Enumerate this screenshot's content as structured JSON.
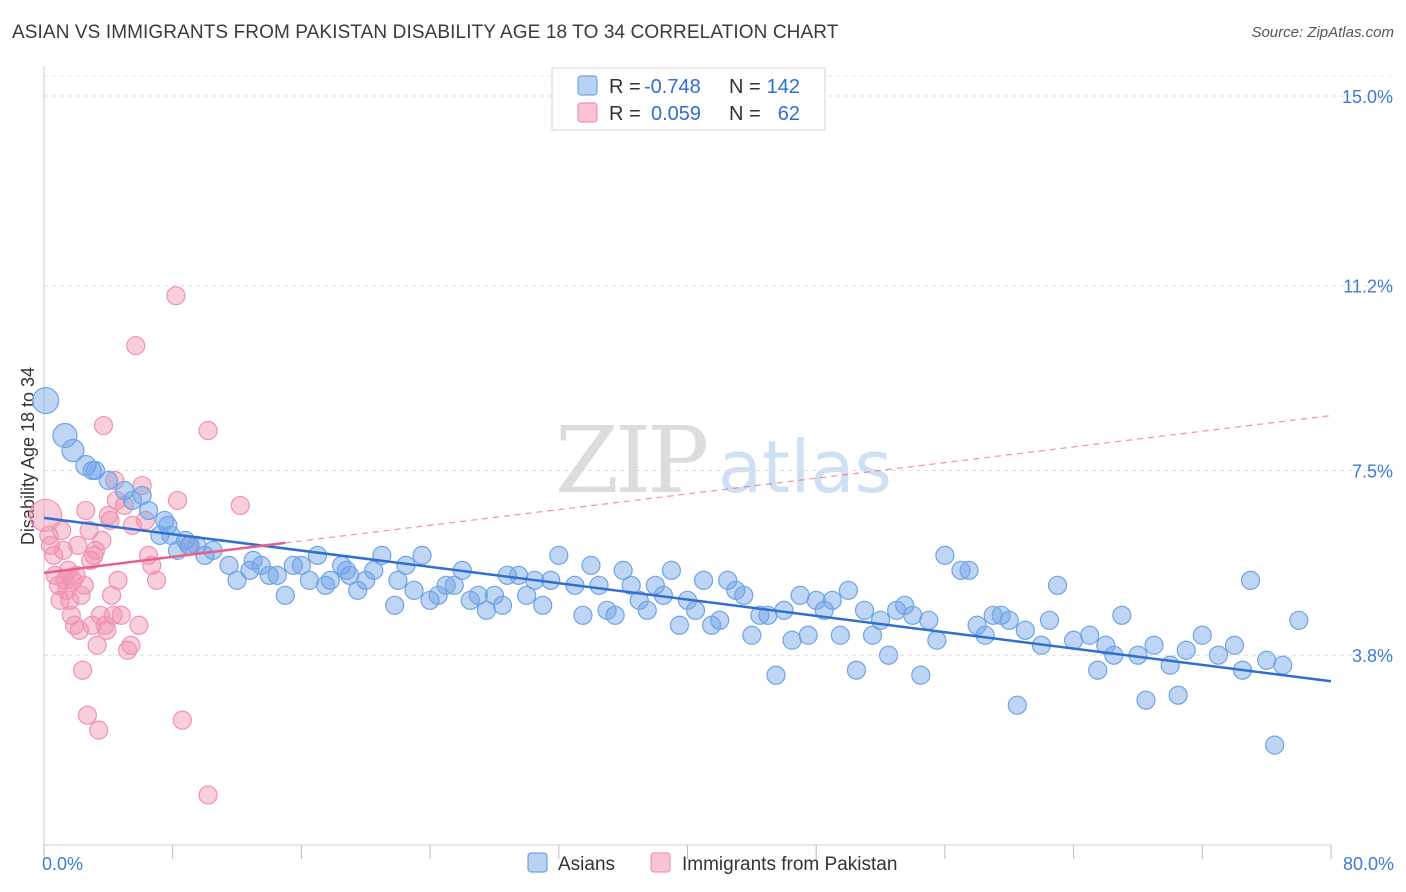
{
  "title": "ASIAN VS IMMIGRANTS FROM PAKISTAN DISABILITY AGE 18 TO 34 CORRELATION CHART",
  "source": "Source: ZipAtlas.com",
  "watermark": {
    "zip": "ZIP",
    "atlas": "atlas"
  },
  "colors": {
    "asians": "#6fa3e6",
    "asians_line": "#2f6fd0",
    "pakistan": "#f093b0",
    "pakistan_line": "#e8608a"
  },
  "legend": {
    "r_label": "R =",
    "n_label": "N =",
    "rows": [
      {
        "series": "Asians",
        "r": "-0.748",
        "n": "142"
      },
      {
        "series": "Immigrants from Pakistan",
        "r": "0.059",
        "n": "62"
      }
    ]
  },
  "bottom_legend": [
    "Asians",
    "Immigrants from Pakistan"
  ],
  "chart_data": {
    "type": "scatter",
    "title": "ASIAN VS IMMIGRANTS FROM PAKISTAN DISABILITY AGE 18 TO 34 CORRELATION CHART",
    "xlabel": "",
    "ylabel": "Disability Age 18 to 34",
    "xlim": [
      0,
      80
    ],
    "ylim": [
      0,
      15.6
    ],
    "x_tick_labels": [
      "0.0%",
      "80.0%"
    ],
    "y_ticks": [
      3.8,
      7.5,
      11.2,
      15.0
    ],
    "y_tick_labels": [
      "3.8%",
      "7.5%",
      "11.2%",
      "15.0%"
    ],
    "grid": true,
    "legend_position": "top-center",
    "series": [
      {
        "name": "Asians",
        "r": -0.748,
        "n": 142,
        "trend": {
          "x": [
            0,
            80
          ],
          "y": [
            6.55,
            3.28
          ]
        },
        "points": [
          [
            0.1,
            8.9
          ],
          [
            1.3,
            8.2
          ],
          [
            1.8,
            7.9
          ],
          [
            2.6,
            7.6
          ],
          [
            3.2,
            7.5
          ],
          [
            5.0,
            7.1
          ],
          [
            6.1,
            7.0
          ],
          [
            6.5,
            6.7
          ],
          [
            7.2,
            6.2
          ],
          [
            7.5,
            6.5
          ],
          [
            7.9,
            6.2
          ],
          [
            8.3,
            5.9
          ],
          [
            8.8,
            6.1
          ],
          [
            9.5,
            6.0
          ],
          [
            10.5,
            5.9
          ],
          [
            11.5,
            5.6
          ],
          [
            12.0,
            5.3
          ],
          [
            12.8,
            5.5
          ],
          [
            13.5,
            5.6
          ],
          [
            14.5,
            5.4
          ],
          [
            15.0,
            5.0
          ],
          [
            16.0,
            5.6
          ],
          [
            17.0,
            5.8
          ],
          [
            17.5,
            5.2
          ],
          [
            18.5,
            5.6
          ],
          [
            19.0,
            5.4
          ],
          [
            20.0,
            5.3
          ],
          [
            21.0,
            5.8
          ],
          [
            21.8,
            4.8
          ],
          [
            22.5,
            5.6
          ],
          [
            23.0,
            5.1
          ],
          [
            23.5,
            5.8
          ],
          [
            24.0,
            4.9
          ],
          [
            25.0,
            5.2
          ],
          [
            26.0,
            5.5
          ],
          [
            27.0,
            5.0
          ],
          [
            28.0,
            5.0
          ],
          [
            28.5,
            4.8
          ],
          [
            29.5,
            5.4
          ],
          [
            30.0,
            5.0
          ],
          [
            31.0,
            4.8
          ],
          [
            32.0,
            5.8
          ],
          [
            33.5,
            4.6
          ],
          [
            34.0,
            5.6
          ],
          [
            35.0,
            4.7
          ],
          [
            36.0,
            5.5
          ],
          [
            37.0,
            4.9
          ],
          [
            38.0,
            5.2
          ],
          [
            39.0,
            5.5
          ],
          [
            40.0,
            4.9
          ],
          [
            41.0,
            5.3
          ],
          [
            42.0,
            4.5
          ],
          [
            43.0,
            5.1
          ],
          [
            44.0,
            4.2
          ],
          [
            45.0,
            4.6
          ],
          [
            46.0,
            4.7
          ],
          [
            47.0,
            5.0
          ],
          [
            48.0,
            4.9
          ],
          [
            49.0,
            4.9
          ],
          [
            50.0,
            5.1
          ],
          [
            51.0,
            4.7
          ],
          [
            52.0,
            4.5
          ],
          [
            53.0,
            4.7
          ],
          [
            54.0,
            4.6
          ],
          [
            55.0,
            4.5
          ],
          [
            56.0,
            5.8
          ],
          [
            57.0,
            5.5
          ],
          [
            58.0,
            4.4
          ],
          [
            59.0,
            4.6
          ],
          [
            60.0,
            4.5
          ],
          [
            61.0,
            4.3
          ],
          [
            62.0,
            4.0
          ],
          [
            63.0,
            5.2
          ],
          [
            64.0,
            4.1
          ],
          [
            65.0,
            4.2
          ],
          [
            66.0,
            4.0
          ],
          [
            67.0,
            4.6
          ],
          [
            68.0,
            3.8
          ],
          [
            69.0,
            4.0
          ],
          [
            70.0,
            3.6
          ],
          [
            71.0,
            3.9
          ],
          [
            72.0,
            4.2
          ],
          [
            73.0,
            3.8
          ],
          [
            74.0,
            4.0
          ],
          [
            75.0,
            5.3
          ],
          [
            76.0,
            3.7
          ],
          [
            77.0,
            3.6
          ],
          [
            78.0,
            4.5
          ],
          [
            3.0,
            7.5
          ],
          [
            4.0,
            7.3
          ],
          [
            5.5,
            6.9
          ],
          [
            7.7,
            6.4
          ],
          [
            9.0,
            6.0
          ],
          [
            10.0,
            5.8
          ],
          [
            13.0,
            5.7
          ],
          [
            14.0,
            5.4
          ],
          [
            15.5,
            5.6
          ],
          [
            16.5,
            5.3
          ],
          [
            17.8,
            5.3
          ],
          [
            18.8,
            5.5
          ],
          [
            19.5,
            5.1
          ],
          [
            20.5,
            5.5
          ],
          [
            22.0,
            5.3
          ],
          [
            24.5,
            5.0
          ],
          [
            25.5,
            5.2
          ],
          [
            26.5,
            4.9
          ],
          [
            27.5,
            4.7
          ],
          [
            28.8,
            5.4
          ],
          [
            30.5,
            5.3
          ],
          [
            31.5,
            5.3
          ],
          [
            33.0,
            5.2
          ],
          [
            34.5,
            5.2
          ],
          [
            35.5,
            4.6
          ],
          [
            36.5,
            5.2
          ],
          [
            37.5,
            4.7
          ],
          [
            38.5,
            5.0
          ],
          [
            39.5,
            4.4
          ],
          [
            40.5,
            4.7
          ],
          [
            41.5,
            4.4
          ],
          [
            42.5,
            5.3
          ],
          [
            43.5,
            5.0
          ],
          [
            44.5,
            4.6
          ],
          [
            45.5,
            3.4
          ],
          [
            46.5,
            4.1
          ],
          [
            47.5,
            4.2
          ],
          [
            48.5,
            4.7
          ],
          [
            49.5,
            4.2
          ],
          [
            50.5,
            3.5
          ],
          [
            51.5,
            4.2
          ],
          [
            52.5,
            3.8
          ],
          [
            53.5,
            4.8
          ],
          [
            54.5,
            3.4
          ],
          [
            55.5,
            4.1
          ],
          [
            57.5,
            5.5
          ],
          [
            58.5,
            4.2
          ],
          [
            59.5,
            4.6
          ],
          [
            60.5,
            2.8
          ],
          [
            62.5,
            4.5
          ],
          [
            65.5,
            3.5
          ],
          [
            66.5,
            3.8
          ],
          [
            68.5,
            2.9
          ],
          [
            70.5,
            3.0
          ],
          [
            74.5,
            3.5
          ],
          [
            76.5,
            2.0
          ]
        ]
      },
      {
        "name": "Immigrants from Pakistan",
        "r": 0.059,
        "n": 62,
        "trend": {
          "x": [
            0,
            15
          ],
          "y": [
            5.45,
            6.05
          ],
          "x_dash": [
            15,
            80
          ],
          "y_dash": [
            6.05,
            8.6
          ]
        },
        "points": [
          [
            0.1,
            6.6
          ],
          [
            0.3,
            6.2
          ],
          [
            0.4,
            6.0
          ],
          [
            0.6,
            5.8
          ],
          [
            0.7,
            5.4
          ],
          [
            0.9,
            5.2
          ],
          [
            1.0,
            4.9
          ],
          [
            1.1,
            6.3
          ],
          [
            1.2,
            5.9
          ],
          [
            1.3,
            5.3
          ],
          [
            1.4,
            5.1
          ],
          [
            1.5,
            5.5
          ],
          [
            1.6,
            4.9
          ],
          [
            1.7,
            4.6
          ],
          [
            1.8,
            5.3
          ],
          [
            1.9,
            4.4
          ],
          [
            2.0,
            5.4
          ],
          [
            2.1,
            6.0
          ],
          [
            2.2,
            4.3
          ],
          [
            2.3,
            5.0
          ],
          [
            2.4,
            3.5
          ],
          [
            2.5,
            5.2
          ],
          [
            2.6,
            6.7
          ],
          [
            2.7,
            2.6
          ],
          [
            2.8,
            6.3
          ],
          [
            2.9,
            5.7
          ],
          [
            3.0,
            4.4
          ],
          [
            3.1,
            5.8
          ],
          [
            3.2,
            5.9
          ],
          [
            3.3,
            4.0
          ],
          [
            3.4,
            2.3
          ],
          [
            3.5,
            4.6
          ],
          [
            3.6,
            6.1
          ],
          [
            3.7,
            8.4
          ],
          [
            3.8,
            4.4
          ],
          [
            3.9,
            4.3
          ],
          [
            4.0,
            6.6
          ],
          [
            4.1,
            6.5
          ],
          [
            4.2,
            5.0
          ],
          [
            4.3,
            4.6
          ],
          [
            4.4,
            7.3
          ],
          [
            4.5,
            6.9
          ],
          [
            4.6,
            5.3
          ],
          [
            4.8,
            4.6
          ],
          [
            5.0,
            6.8
          ],
          [
            5.2,
            3.9
          ],
          [
            5.4,
            4.0
          ],
          [
            5.5,
            6.4
          ],
          [
            5.7,
            10.0
          ],
          [
            5.9,
            4.4
          ],
          [
            6.1,
            7.2
          ],
          [
            6.3,
            6.5
          ],
          [
            6.5,
            5.8
          ],
          [
            6.7,
            5.6
          ],
          [
            7.0,
            5.3
          ],
          [
            8.2,
            11.0
          ],
          [
            8.3,
            6.9
          ],
          [
            8.6,
            2.5
          ],
          [
            9.1,
            6.0
          ],
          [
            10.2,
            1.0
          ],
          [
            10.2,
            8.3
          ],
          [
            12.2,
            6.8
          ]
        ]
      }
    ]
  }
}
